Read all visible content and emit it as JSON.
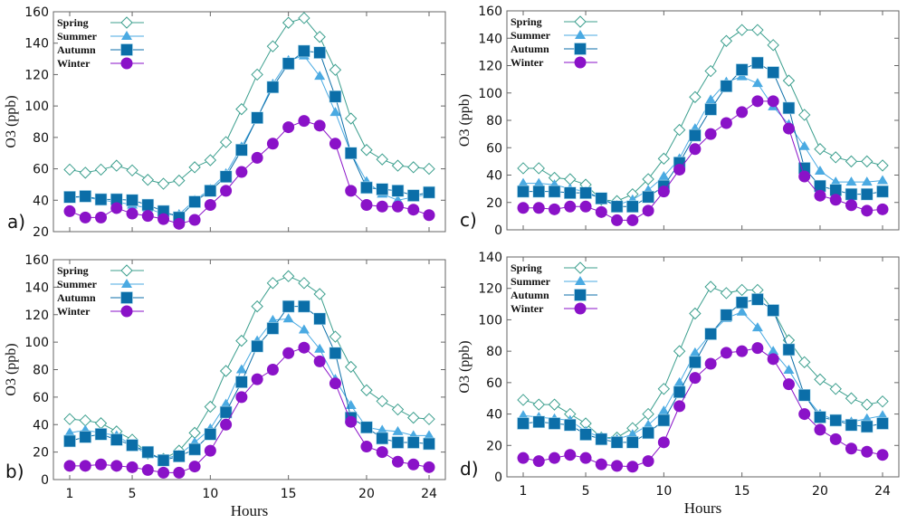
{
  "colors": {
    "Spring": "#3c9f8e",
    "Summer": "#4aaae2",
    "Autumn": "#0b6ea8",
    "Winter": "#8a12c8"
  },
  "chart_data": [
    {
      "type": "line",
      "panel_label": "a)",
      "ylabel": "O3 (ppb)",
      "xlabel": "",
      "ylim": [
        20,
        160
      ],
      "yticks": [
        20,
        40,
        60,
        80,
        100,
        120,
        140,
        160
      ],
      "x": [
        1,
        2,
        3,
        4,
        5,
        6,
        7,
        8,
        9,
        10,
        11,
        12,
        13,
        14,
        15,
        16,
        17,
        18,
        19,
        20,
        21,
        22,
        23,
        24
      ],
      "xticks": [
        1,
        5,
        10,
        15,
        20,
        24
      ],
      "show_xtick_labels": false,
      "legend": [
        "Spring",
        "Summer",
        "Autumn",
        "Winter"
      ],
      "legend_placement": "top-left",
      "series": [
        {
          "name": "Spring",
          "values": [
            59.5,
            57.5,
            59.5,
            62,
            59,
            53,
            50.5,
            52.5,
            61,
            65.5,
            77,
            98,
            120,
            138,
            153,
            156,
            144,
            123,
            92,
            72,
            66,
            62,
            61,
            60
          ]
        },
        {
          "name": "Summer",
          "values": [
            42,
            42,
            40,
            39,
            37,
            35,
            31,
            31,
            40,
            47,
            57,
            74,
            92,
            114,
            129,
            132,
            119,
            96,
            70,
            52,
            44,
            40,
            42,
            44
          ]
        },
        {
          "name": "Autumn",
          "values": [
            42,
            42.5,
            40.5,
            40.5,
            40,
            37,
            33,
            29,
            39,
            46,
            55,
            72,
            92.5,
            112,
            127,
            135,
            134,
            106,
            70,
            48,
            47,
            46,
            43,
            45
          ]
        },
        {
          "name": "Winter",
          "values": [
            33,
            29,
            29,
            35,
            31.5,
            30,
            28,
            25,
            27.5,
            37,
            46,
            58,
            67,
            76,
            86.5,
            90.5,
            87.5,
            76,
            46,
            37,
            36,
            36,
            34,
            30.5
          ]
        }
      ]
    },
    {
      "type": "line",
      "panel_label": "c)",
      "ylabel": "O3 (ppb)",
      "xlabel": "",
      "ylim": [
        0,
        160
      ],
      "yticks": [
        0,
        20,
        40,
        60,
        80,
        100,
        120,
        140,
        160
      ],
      "x": [
        1,
        2,
        3,
        4,
        5,
        6,
        7,
        8,
        9,
        10,
        11,
        12,
        13,
        14,
        15,
        16,
        17,
        18,
        19,
        20,
        21,
        22,
        23,
        24
      ],
      "xticks": [
        1,
        5,
        10,
        15,
        20,
        24
      ],
      "show_xtick_labels": false,
      "legend": [
        "Spring",
        "Summer",
        "Autumn",
        "Winter"
      ],
      "legend_placement": "top-left",
      "series": [
        {
          "name": "Spring",
          "values": [
            45,
            45,
            38,
            37,
            33,
            22,
            21,
            26,
            37,
            52,
            73,
            97,
            116,
            138,
            146,
            146,
            135,
            109,
            84,
            59,
            53,
            50,
            50,
            47
          ]
        },
        {
          "name": "Summer",
          "values": [
            34,
            34,
            33,
            30,
            28,
            23,
            18,
            22,
            29,
            39,
            52,
            74,
            95,
            108,
            112,
            107,
            90,
            77,
            61,
            43,
            35,
            35,
            35,
            36
          ]
        },
        {
          "name": "Autumn",
          "values": [
            28,
            28,
            28,
            27,
            27,
            23,
            17,
            17,
            24,
            32,
            49,
            69,
            88,
            105,
            117,
            122,
            115,
            89,
            45,
            32,
            29,
            26,
            26,
            28
          ]
        },
        {
          "name": "Winter",
          "values": [
            16,
            16,
            15,
            17,
            17,
            13,
            7,
            7,
            14,
            28,
            44,
            59,
            70,
            78,
            86,
            94,
            94,
            74,
            39,
            25,
            22,
            18,
            14,
            15
          ]
        }
      ]
    },
    {
      "type": "line",
      "panel_label": "b)",
      "ylabel": "O3 (ppb)",
      "xlabel": "Hours",
      "ylim": [
        0,
        160
      ],
      "yticks": [
        0,
        20,
        40,
        60,
        80,
        100,
        120,
        140,
        160
      ],
      "x": [
        1,
        2,
        3,
        4,
        5,
        6,
        7,
        8,
        9,
        10,
        11,
        12,
        13,
        14,
        15,
        16,
        17,
        18,
        19,
        20,
        21,
        22,
        23,
        24
      ],
      "xticks": [
        1,
        5,
        10,
        15,
        20,
        24
      ],
      "show_xtick_labels": true,
      "legend": [
        "Spring",
        "Summer",
        "Autumn",
        "Winter"
      ],
      "legend_placement": "top-left",
      "series": [
        {
          "name": "Spring",
          "values": [
            44,
            43,
            41,
            35,
            29,
            19,
            15,
            21,
            34,
            53,
            79,
            101,
            126,
            143,
            148,
            143,
            135,
            104,
            82,
            65,
            57,
            51,
            45,
            44
          ]
        },
        {
          "name": "Summer",
          "values": [
            34,
            36,
            34,
            32,
            25,
            18,
            15,
            18,
            27,
            37,
            55,
            80,
            101,
            116,
            117,
            109,
            95,
            73,
            54,
            38,
            36,
            35,
            32,
            32
          ]
        },
        {
          "name": "Autumn",
          "values": [
            28,
            31,
            33,
            29,
            25,
            20,
            14,
            17,
            22,
            33,
            49,
            71,
            97,
            110,
            126,
            126,
            117,
            92,
            45,
            38,
            30,
            27,
            27,
            26
          ]
        },
        {
          "name": "Winter",
          "values": [
            10,
            10,
            11,
            10,
            9,
            7,
            5,
            5,
            9.5,
            21,
            40,
            60,
            73,
            80,
            92,
            96,
            86,
            70,
            42,
            24,
            20,
            13,
            11,
            9
          ]
        }
      ]
    },
    {
      "type": "line",
      "panel_label": "d)",
      "ylabel": "O3 (ppb)",
      "xlabel": "Hours",
      "ylim": [
        0,
        140
      ],
      "yticks": [
        0,
        20,
        40,
        60,
        80,
        100,
        120,
        140
      ],
      "x": [
        1,
        2,
        3,
        4,
        5,
        6,
        7,
        8,
        9,
        10,
        11,
        12,
        13,
        14,
        15,
        16,
        17,
        18,
        19,
        20,
        21,
        22,
        23,
        24
      ],
      "xticks": [
        1,
        5,
        10,
        15,
        20,
        24
      ],
      "show_xtick_labels": true,
      "legend": [
        "Spring",
        "Summer",
        "Autumn",
        "Winter"
      ],
      "legend_placement": "top-left",
      "series": [
        {
          "name": "Spring",
          "values": [
            49,
            46,
            46,
            40,
            34,
            25,
            25,
            31,
            40,
            56,
            80,
            104,
            121,
            117,
            119,
            119,
            106,
            87,
            73,
            62,
            56,
            50,
            46,
            48
          ]
        },
        {
          "name": "Summer",
          "values": [
            39,
            38,
            37,
            36,
            29,
            25,
            24,
            27,
            33,
            42,
            60,
            79,
            91,
            101,
            105,
            95,
            80,
            68,
            52,
            40,
            36,
            35,
            37,
            39
          ]
        },
        {
          "name": "Autumn",
          "values": [
            34,
            35,
            34,
            33,
            27,
            24,
            22,
            22,
            28,
            36,
            54,
            73,
            91,
            103,
            111,
            113,
            106,
            81,
            52,
            38,
            36,
            33,
            32,
            34
          ]
        },
        {
          "name": "Winter",
          "values": [
            12,
            10,
            12,
            14,
            12,
            8,
            7,
            6.5,
            10,
            22,
            45,
            63,
            72,
            79,
            80,
            82,
            75,
            59,
            40,
            30,
            24,
            18,
            16,
            14
          ]
        }
      ]
    }
  ]
}
